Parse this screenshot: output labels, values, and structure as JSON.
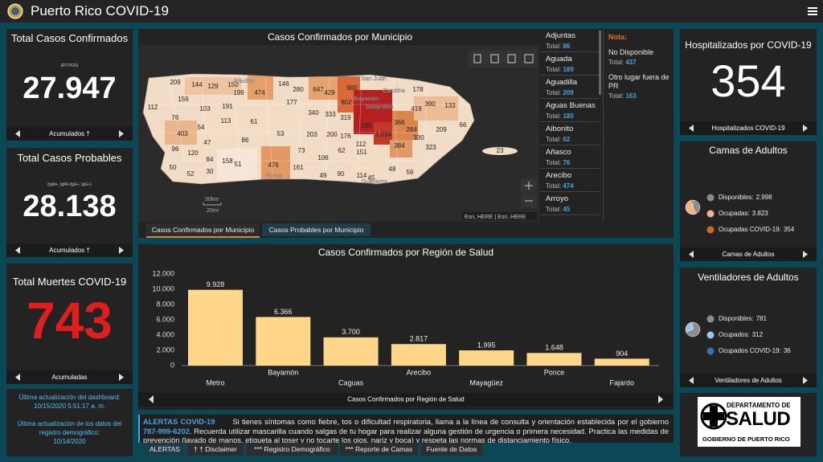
{
  "header": {
    "title": "Puerto Rico COVID-19"
  },
  "left_cards": [
    {
      "title": "Total Casos Confirmados",
      "subtitle": "(RT-PCR)",
      "value": "27.947",
      "footer": "Acumulados †"
    },
    {
      "title": "Total Casos Probables",
      "subtitle": "(IgM+, IgM+/IgG+, IgG+)",
      "value": "28.138",
      "footer": "Acumulados †"
    },
    {
      "title": "Total Muertes COVID-19",
      "value": "743",
      "footer": "Acumuladas"
    }
  ],
  "updates": [
    "Última actualización del dashboard:",
    "10/15/2020 5:51:17 a. m.",
    "Última actualización de los datos del registro demográfico:",
    "10/14/2020"
  ],
  "map": {
    "title": "Casos Confirmados por Municipio",
    "labels": [
      "209",
      "144",
      "129",
      "150",
      "199",
      "474",
      "146",
      "280",
      "647",
      "429",
      "900",
      "178",
      "112",
      "156",
      "103",
      "191",
      "177",
      "802",
      "419",
      "390",
      "133",
      "76",
      "113",
      "61",
      "340",
      "333",
      "319",
      "180",
      "366",
      "66",
      "403",
      "54",
      "53",
      "203",
      "200",
      "176",
      "284",
      "209",
      "1.034",
      "47",
      "86",
      "112",
      "384",
      "330",
      "323",
      "96",
      "120",
      "73",
      "62",
      "151",
      "23",
      "84",
      "158",
      "51",
      "476",
      "161",
      "106",
      "90",
      "114",
      "45",
      "48",
      "56",
      "50",
      "52",
      "30",
      "49"
    ],
    "places": [
      "Arecibo",
      "San Juan",
      "Carolina",
      "Bayamón",
      "Guaynabo",
      "Ponce",
      "Guayama"
    ],
    "scale": [
      "30km",
      "20mi"
    ],
    "attribution": "Esri, HERE | Esri, HERE"
  },
  "municipios": [
    {
      "name": "Adjuntas",
      "label": "Total:",
      "value": "86"
    },
    {
      "name": "Aguada",
      "label": "Total:",
      "value": "189"
    },
    {
      "name": "Aguadilla",
      "label": "Total:",
      "value": "209"
    },
    {
      "name": "Aguas Buenas",
      "label": "Total:",
      "value": "180"
    },
    {
      "name": "Aibonito",
      "label": "Total:",
      "value": "62"
    },
    {
      "name": "Añasco",
      "label": "Total:",
      "value": "76"
    },
    {
      "name": "Arecibo",
      "label": "Total:",
      "value": "474"
    },
    {
      "name": "Arroyo",
      "label": "Total:",
      "value": "45"
    }
  ],
  "note": {
    "title": "Nota:",
    "items": [
      {
        "name": "No Disponible",
        "label": "Total:",
        "value": "437"
      },
      {
        "name": "Otro lugar fuera de PR",
        "label": "Total:",
        "value": "163"
      }
    ]
  },
  "map_tabs": [
    "Casos Confirmados por Municipio",
    "Casos Probables por Municipio"
  ],
  "hospital_card": {
    "title": "Hospitalizados por COVID-19",
    "value": "354",
    "footer": "Hospitalizados COVID-19"
  },
  "alert": {
    "title": "ALERTAS COVID-19",
    "text1": "Si tienes síntomas como fiebre, tos o dificultad respiratoria, llama a la línea de consulta y orientación establecida por el gobierno",
    "phone": "787-999-6202",
    "text2": ". Recuerda utilizar mascarilla cuando salgas de tu hogar para realizar alguna gestión de urgencia o primera necesidad. Practica las medidas de prevención (lavado de manos, etiqueta al toser y no tocarte los ojos, nariz y boca) y respeta las normas de distanciamiento físico."
  },
  "bottom_tabs": [
    "ALERTAS",
    "† † Disclaimer",
    "*** Registro Demográfico",
    "*** Reporte de Camas",
    "Fuente de Datos"
  ],
  "logo": {
    "line1": "DEPARTAMENTO DE",
    "line2": "SALUD",
    "line3": "GOBIERNO DE PUERTO RICO"
  },
  "chart_data": [
    {
      "type": "bar",
      "title": "Casos Confirmados por Región de Salud",
      "categories": [
        "Metro",
        "Bayamón",
        "Caguas",
        "Arecibo",
        "Mayagüez",
        "Ponce",
        "Fajardo"
      ],
      "values": [
        9928,
        6366,
        3700,
        2817,
        1995,
        1648,
        904
      ],
      "value_labels": [
        "9.928",
        "6.366",
        "3.700",
        "2.817",
        "1.995",
        "1.648",
        "904"
      ],
      "color": "#ffd68a",
      "ylim": [
        0,
        12000
      ],
      "yticks": [
        0,
        {
          "value": 2000,
          "label": "2.000"
        },
        {
          "value": 4000,
          "label": "4.000"
        },
        {
          "value": 6000,
          "label": "6.000"
        },
        {
          "value": 8000,
          "label": "8.000"
        },
        {
          "value": 10000,
          "label": "10.000"
        },
        {
          "value": 12000,
          "label": "12.000"
        }
      ],
      "grid": false,
      "footer": "Casos Confirmados por Región de Salud"
    },
    {
      "type": "pie",
      "title": "Camas de Adultos",
      "categories": [
        "Disponibles:",
        "Ocupadas:",
        "Ocupadas COVID-19:"
      ],
      "values": [
        2998,
        3823,
        354
      ],
      "value_labels": [
        "2.998",
        "3.823",
        "354"
      ],
      "colors": [
        "#8c8c8c",
        "#f4b183",
        "#d0661f"
      ],
      "footer": "Camas de Adultos"
    },
    {
      "type": "pie",
      "title": "Ventiladores de Adultos",
      "categories": [
        "Disponibles:",
        "Ocupados:",
        "Ocupados COVID-19:"
      ],
      "values": [
        781,
        312,
        36
      ],
      "value_labels": [
        "781",
        "312",
        "36"
      ],
      "colors": [
        "#8c8c8c",
        "#9dc3e6",
        "#2e75b6"
      ],
      "footer": "Ventiladores de Adultos"
    }
  ]
}
